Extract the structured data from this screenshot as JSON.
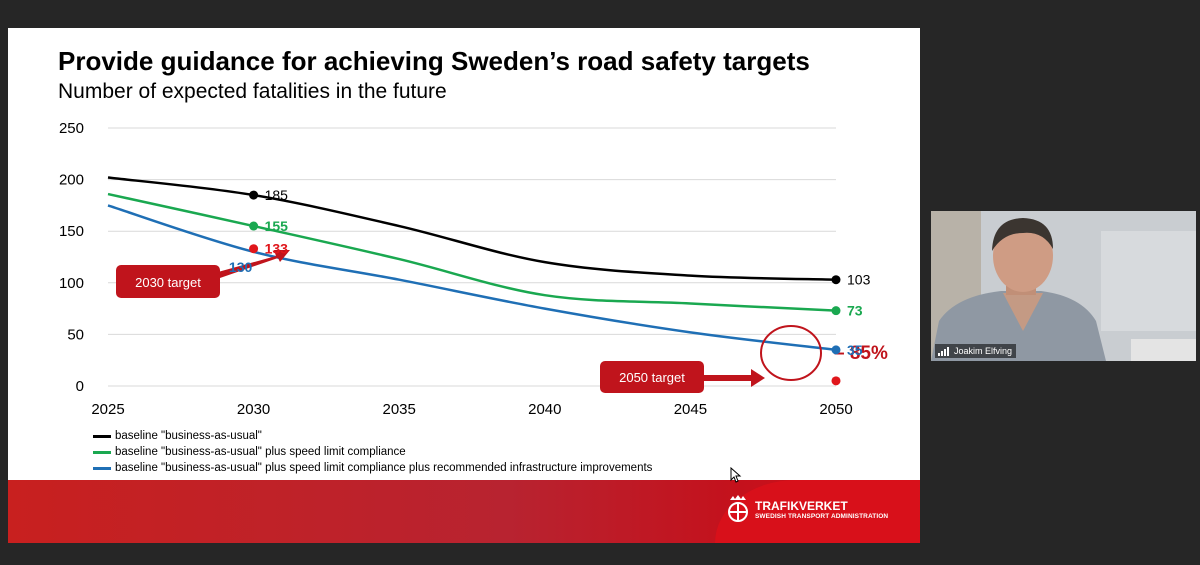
{
  "slide": {
    "title": "Provide guidance for achieving Sweden’s road safety targets",
    "subtitle": "Number of expected fatalities in the future"
  },
  "chart_data": {
    "type": "line",
    "ylim": [
      0,
      250
    ],
    "yticks": [
      0,
      50,
      100,
      150,
      200,
      250
    ],
    "xticks": [
      2025,
      2030,
      2035,
      2040,
      2045,
      2050
    ],
    "grid": true,
    "series": [
      {
        "name": "baseline \"business-as-usual\"",
        "color": "#000000",
        "x": [
          2025,
          2030,
          2035,
          2040,
          2045,
          2050
        ],
        "values": [
          202,
          185,
          155,
          120,
          107,
          103
        ]
      },
      {
        "name": "baseline \"business-as-usual\" plus speed limit compliance",
        "color": "#1aa850",
        "x": [
          2025,
          2030,
          2035,
          2040,
          2045,
          2050
        ],
        "values": [
          186,
          155,
          123,
          88,
          80,
          73
        ]
      },
      {
        "name": "baseline \"business-as-usual\" plus speed limit compliance plus recommended infrastructure improvements",
        "color": "#1f6fb5",
        "x": [
          2025,
          2030,
          2035,
          2040,
          2045,
          2050
        ],
        "values": [
          175,
          130,
          103,
          75,
          52,
          35
        ]
      }
    ],
    "points": [
      {
        "x": 2030,
        "y": 185,
        "label": "185",
        "color": "#000000",
        "label_color": "#000000",
        "bold": false
      },
      {
        "x": 2030,
        "y": 155,
        "label": "155",
        "color": "#1aa850",
        "label_color": "#1aa850",
        "bold": true
      },
      {
        "x": 2030,
        "y": 133,
        "label": "133",
        "color": "#e0161b",
        "label_color": "#e0161b",
        "bold": true
      },
      {
        "x": 2050,
        "y": 103,
        "label": "103",
        "color": "#000000",
        "label_color": "#000000",
        "bold": false
      },
      {
        "x": 2050,
        "y": 73,
        "label": "73",
        "color": "#1aa850",
        "label_color": "#1aa850",
        "bold": true
      },
      {
        "x": 2050,
        "y": 35,
        "label": "35",
        "color": "#1f6fb5",
        "label_color": "#1f6fb5",
        "bold": true
      },
      {
        "x": 2050,
        "y": 5,
        "label": "",
        "color": "#e0161b",
        "label_color": "#e0161b",
        "bold": false
      }
    ],
    "extra_labels": [
      {
        "x": 2030,
        "y": 130,
        "label": "130",
        "color": "#1f6fb5"
      }
    ],
    "annotations": {
      "target_2030": {
        "label": "2030 target",
        "x": 2030,
        "y": 133
      },
      "target_2050": {
        "label": "2050 target",
        "x": 2050,
        "y": 5
      },
      "reduction": {
        "label": "– 85%",
        "color": "#c0141c",
        "x": 2050,
        "y": 35
      }
    }
  },
  "legend": [
    {
      "label": "baseline \"business-as-usual\"",
      "color": "#000000"
    },
    {
      "label": "baseline \"business-as-usual\" plus speed limit compliance",
      "color": "#1aa850"
    },
    {
      "label": "baseline \"business-as-usual\" plus speed limit compliance plus recommended infrastructure improvements",
      "color": "#1f6fb5"
    }
  ],
  "branding": {
    "name": "TRAFIKVERKET",
    "tagline": "SWEDISH TRANSPORT ADMINISTRATION",
    "color": "#d8101a"
  },
  "participant": {
    "name": "Joakim Elfving"
  }
}
